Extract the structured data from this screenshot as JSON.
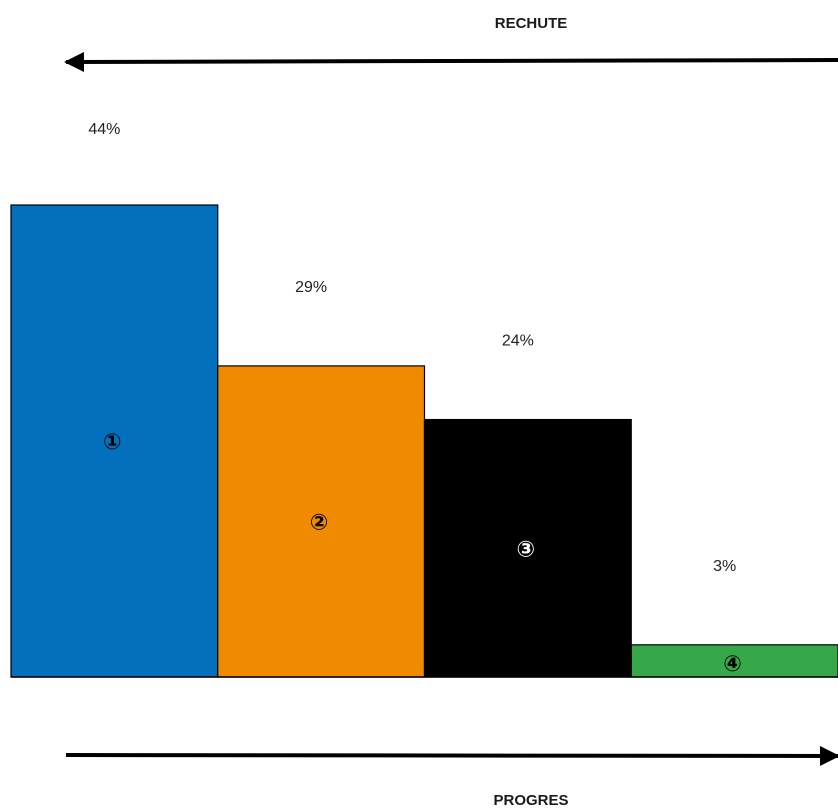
{
  "arrows": {
    "top_label": "RECHUTE",
    "bottom_label": "PROGRES"
  },
  "chart_data": {
    "type": "bar",
    "categories": [
      "①",
      "②",
      "③",
      "④"
    ],
    "values": [
      44,
      29,
      24,
      3
    ],
    "value_labels": [
      "44%",
      "29%",
      "24%",
      "3%"
    ],
    "colors": [
      "#0270bd",
      "#f08a00",
      "#000000",
      "#37a84a"
    ],
    "label_colors": [
      "#000000",
      "#000000",
      "#ffffff",
      "#000000"
    ],
    "ylim": [
      0,
      44
    ],
    "grid": false,
    "legend": "none",
    "title": "",
    "xlabel": "",
    "ylabel": ""
  }
}
